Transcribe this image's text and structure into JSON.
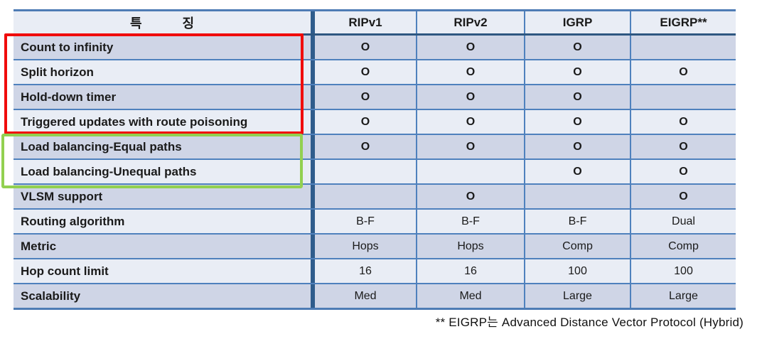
{
  "table": {
    "feature_header": "특 징",
    "columns": [
      "RIPv1",
      "RIPv2",
      "IGRP",
      "EIGRP**"
    ],
    "rows": [
      {
        "label": "Count to infinity",
        "values": [
          "O",
          "O",
          "O",
          ""
        ]
      },
      {
        "label": "Split horizon",
        "values": [
          "O",
          "O",
          "O",
          "O"
        ]
      },
      {
        "label": "Hold-down timer",
        "values": [
          "O",
          "O",
          "O",
          ""
        ]
      },
      {
        "label": "Triggered updates with route poisoning",
        "values": [
          "O",
          "O",
          "O",
          "O"
        ]
      },
      {
        "label": "Load balancing-Equal paths",
        "values": [
          "O",
          "O",
          "O",
          "O"
        ]
      },
      {
        "label": "Load balancing-Unequal paths",
        "values": [
          "",
          "",
          "O",
          "O"
        ]
      },
      {
        "label": "VLSM support",
        "values": [
          "",
          "O",
          "",
          "O"
        ]
      },
      {
        "label": "Routing algorithm",
        "values": [
          "B-F",
          "B-F",
          "B-F",
          "Dual"
        ]
      },
      {
        "label": "Metric",
        "values": [
          "Hops",
          "Hops",
          "Comp",
          "Comp"
        ]
      },
      {
        "label": "Hop count limit",
        "values": [
          "16",
          "16",
          "100",
          "100"
        ]
      },
      {
        "label": "Scalability",
        "values": [
          "Med",
          "Med",
          "Large",
          "Large"
        ]
      }
    ],
    "footnote": "** EIGRP는 Advanced Distance Vector Protocol (Hybrid)"
  },
  "annotations": {
    "red_box": {
      "color": "#f00c0c",
      "highlighted_rows": [
        "Count to infinity",
        "Split horizon",
        "Hold-down timer",
        "Triggered updates with route poisoning"
      ]
    },
    "green_box": {
      "color": "#92d050",
      "highlighted_rows": [
        "Load balancing-Equal paths",
        "Load balancing-Unequal paths"
      ]
    }
  },
  "colors": {
    "row_dark": "#cfd5e6",
    "row_light": "#e9edf5",
    "grid_line": "#4f81bd",
    "header_separator": "#2e5781",
    "outer_border": "#4e7cb5"
  }
}
